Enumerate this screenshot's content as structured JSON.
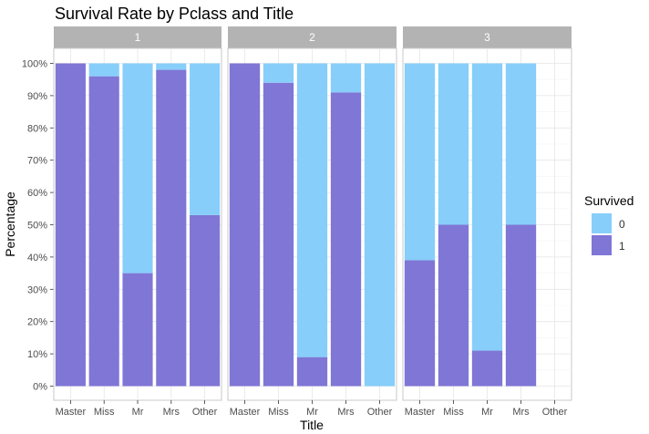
{
  "chart_data": {
    "type": "bar",
    "subtype": "stacked-percent-faceted",
    "title": "Survival Rate by Pclass and Title",
    "xlabel": "Title",
    "ylabel": "Percentage",
    "ylim": [
      0,
      100
    ],
    "yticks": [
      0,
      10,
      20,
      30,
      40,
      50,
      60,
      70,
      80,
      90,
      100
    ],
    "ytick_labels": [
      "0%",
      "10%",
      "20%",
      "30%",
      "40%",
      "50%",
      "60%",
      "70%",
      "80%",
      "90%",
      "100%"
    ],
    "categories": [
      "Master",
      "Miss",
      "Mr",
      "Mrs",
      "Other"
    ],
    "legend": {
      "title": "Survived",
      "position": "right",
      "entries": [
        {
          "label": "0",
          "color": "#87CEFA"
        },
        {
          "label": "1",
          "color": "#7F76D6"
        }
      ]
    },
    "grid": true,
    "facets": [
      {
        "label": "1",
        "series": [
          {
            "name": "1",
            "values": [
              100,
              96,
              35,
              98,
              53
            ]
          },
          {
            "name": "0",
            "values": [
              0,
              4,
              65,
              2,
              47
            ]
          }
        ]
      },
      {
        "label": "2",
        "series": [
          {
            "name": "1",
            "values": [
              100,
              94,
              9,
              91,
              0
            ]
          },
          {
            "name": "0",
            "values": [
              0,
              6,
              91,
              9,
              100
            ]
          }
        ]
      },
      {
        "label": "3",
        "series": [
          {
            "name": "1",
            "values": [
              39,
              50,
              11,
              50,
              null
            ]
          },
          {
            "name": "0",
            "values": [
              61,
              50,
              89,
              50,
              null
            ]
          }
        ]
      }
    ]
  }
}
